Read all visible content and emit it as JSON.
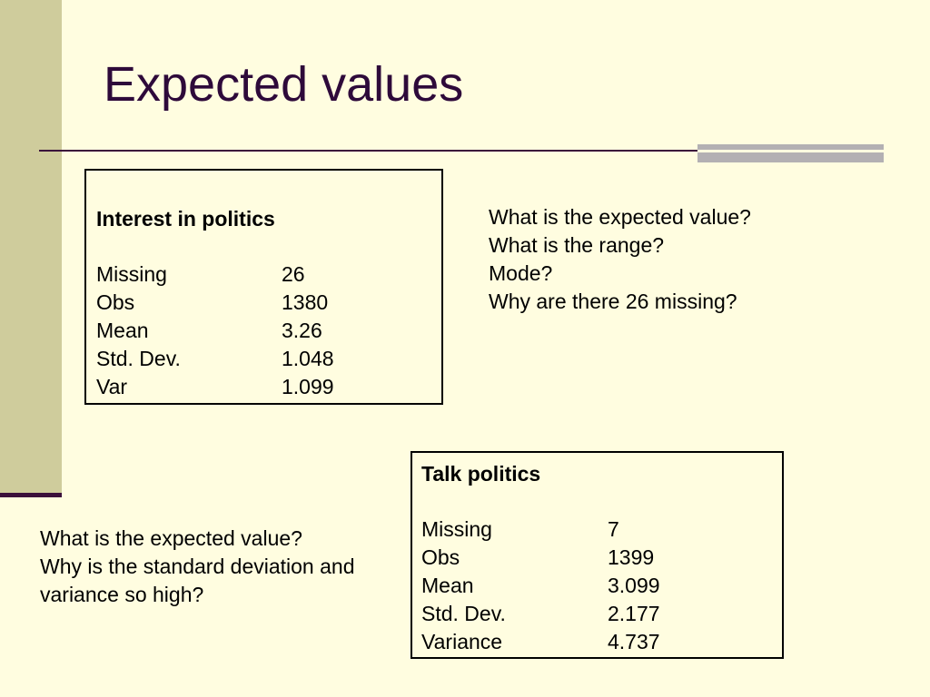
{
  "slide": {
    "title": "Expected values"
  },
  "interest_box": {
    "title": "Interest in politics",
    "rows": [
      {
        "label": "Missing",
        "value": "26"
      },
      {
        "label": "Obs",
        "value": "1380"
      },
      {
        "label": "Mean",
        "value": "3.26"
      },
      {
        "label": "Std. Dev.",
        "value": "1.048"
      },
      {
        "label": "Var",
        "value": "1.099"
      }
    ]
  },
  "talk_box": {
    "title": "Talk politics",
    "rows": [
      {
        "label": "Missing",
        "value": "7"
      },
      {
        "label": "Obs",
        "value": "1399"
      },
      {
        "label": "Mean",
        "value": "3.099"
      },
      {
        "label": "Std. Dev.",
        "value": "2.177"
      },
      {
        "label": "Variance",
        "value": "4.737"
      }
    ]
  },
  "questions_interest": [
    "What is the expected value?",
    "What is the range?",
    "Mode?",
    "Why are there 26 missing?"
  ],
  "questions_talk": [
    "What is the expected value?",
    "Why is the standard deviation and",
    "variance so high?"
  ],
  "colors": {
    "background": "#fffde0",
    "left_band": "#cfcc9c",
    "title_text": "#2e0a3a",
    "rule": "#3b0f3b",
    "accent_bar": "#b3b0b3"
  }
}
